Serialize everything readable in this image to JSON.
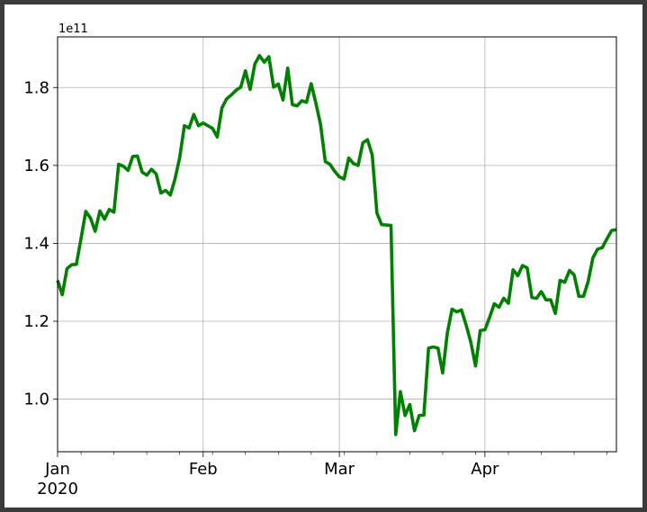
{
  "chart_data": {
    "type": "line",
    "title": "",
    "xlabel": "",
    "ylabel": "",
    "y_offset_label": "1e11",
    "grid": true,
    "x_ticks": [
      {
        "date": "2020-01-01",
        "label": "Jan",
        "sublabel": "2020"
      },
      {
        "date": "2020-02-01",
        "label": "Feb",
        "sublabel": ""
      },
      {
        "date": "2020-03-01",
        "label": "Mar",
        "sublabel": ""
      },
      {
        "date": "2020-04-01",
        "label": "Apr",
        "sublabel": ""
      }
    ],
    "y_ticks": [
      1.0,
      1.2,
      1.4,
      1.6,
      1.8
    ],
    "y_tick_labels": [
      "1.0",
      "1.2",
      "1.4",
      "1.6",
      "1.8"
    ],
    "xlim": [
      "2020-01-01",
      "2020-04-29"
    ],
    "ylim": [
      0.865,
      1.93
    ],
    "series": [
      {
        "color": "#008000",
        "x": [
          "2020-01-01",
          "2020-01-02",
          "2020-01-03",
          "2020-01-04",
          "2020-01-05",
          "2020-01-06",
          "2020-01-07",
          "2020-01-08",
          "2020-01-09",
          "2020-01-10",
          "2020-01-11",
          "2020-01-12",
          "2020-01-13",
          "2020-01-14",
          "2020-01-15",
          "2020-01-16",
          "2020-01-17",
          "2020-01-18",
          "2020-01-19",
          "2020-01-20",
          "2020-01-21",
          "2020-01-22",
          "2020-01-23",
          "2020-01-24",
          "2020-01-25",
          "2020-01-26",
          "2020-01-27",
          "2020-01-28",
          "2020-01-29",
          "2020-01-30",
          "2020-01-31",
          "2020-02-01",
          "2020-02-02",
          "2020-02-03",
          "2020-02-04",
          "2020-02-05",
          "2020-02-06",
          "2020-02-07",
          "2020-02-08",
          "2020-02-09",
          "2020-02-10",
          "2020-02-11",
          "2020-02-12",
          "2020-02-13",
          "2020-02-14",
          "2020-02-15",
          "2020-02-16",
          "2020-02-17",
          "2020-02-18",
          "2020-02-19",
          "2020-02-20",
          "2020-02-21",
          "2020-02-22",
          "2020-02-23",
          "2020-02-24",
          "2020-02-25",
          "2020-02-26",
          "2020-02-27",
          "2020-02-28",
          "2020-02-29",
          "2020-03-01",
          "2020-03-02",
          "2020-03-03",
          "2020-03-04",
          "2020-03-05",
          "2020-03-06",
          "2020-03-07",
          "2020-03-08",
          "2020-03-09",
          "2020-03-10",
          "2020-03-11",
          "2020-03-12",
          "2020-03-13",
          "2020-03-14",
          "2020-03-15",
          "2020-03-16",
          "2020-03-17",
          "2020-03-18",
          "2020-03-19",
          "2020-03-20",
          "2020-03-21",
          "2020-03-22",
          "2020-03-23",
          "2020-03-24",
          "2020-03-25",
          "2020-03-26",
          "2020-03-27",
          "2020-03-28",
          "2020-03-29",
          "2020-03-30",
          "2020-03-31",
          "2020-04-01",
          "2020-04-02",
          "2020-04-03",
          "2020-04-04",
          "2020-04-05",
          "2020-04-06",
          "2020-04-07",
          "2020-04-08",
          "2020-04-09",
          "2020-04-10",
          "2020-04-11",
          "2020-04-12",
          "2020-04-13",
          "2020-04-14",
          "2020-04-15",
          "2020-04-16",
          "2020-04-17",
          "2020-04-18",
          "2020-04-19",
          "2020-04-20",
          "2020-04-21",
          "2020-04-22",
          "2020-04-23",
          "2020-04-24",
          "2020-04-25",
          "2020-04-26",
          "2020-04-27",
          "2020-04-28",
          "2020-04-29"
        ],
        "y": [
          1.305,
          1.268,
          1.335,
          1.345,
          1.346,
          1.413,
          1.482,
          1.465,
          1.431,
          1.483,
          1.462,
          1.487,
          1.48,
          1.603,
          1.598,
          1.587,
          1.623,
          1.624,
          1.583,
          1.575,
          1.59,
          1.578,
          1.529,
          1.536,
          1.524,
          1.565,
          1.62,
          1.702,
          1.696,
          1.731,
          1.702,
          1.709,
          1.702,
          1.695,
          1.673,
          1.748,
          1.771,
          1.781,
          1.793,
          1.801,
          1.843,
          1.795,
          1.86,
          1.882,
          1.865,
          1.879,
          1.801,
          1.809,
          1.768,
          1.85,
          1.756,
          1.753,
          1.766,
          1.762,
          1.81,
          1.76,
          1.705,
          1.61,
          1.603,
          1.585,
          1.571,
          1.565,
          1.619,
          1.605,
          1.6,
          1.658,
          1.666,
          1.627,
          1.478,
          1.448,
          1.447,
          1.446,
          0.909,
          1.019,
          0.958,
          0.986,
          0.919,
          0.958,
          0.959,
          1.131,
          1.134,
          1.131,
          1.067,
          1.17,
          1.231,
          1.224,
          1.229,
          1.19,
          1.146,
          1.085,
          1.176,
          1.178,
          1.21,
          1.245,
          1.236,
          1.259,
          1.246,
          1.332,
          1.317,
          1.343,
          1.337,
          1.261,
          1.259,
          1.276,
          1.255,
          1.255,
          1.22,
          1.305,
          1.3,
          1.33,
          1.319,
          1.264,
          1.264,
          1.303,
          1.363,
          1.385,
          1.389,
          1.412,
          1.433,
          1.435
        ]
      }
    ]
  }
}
